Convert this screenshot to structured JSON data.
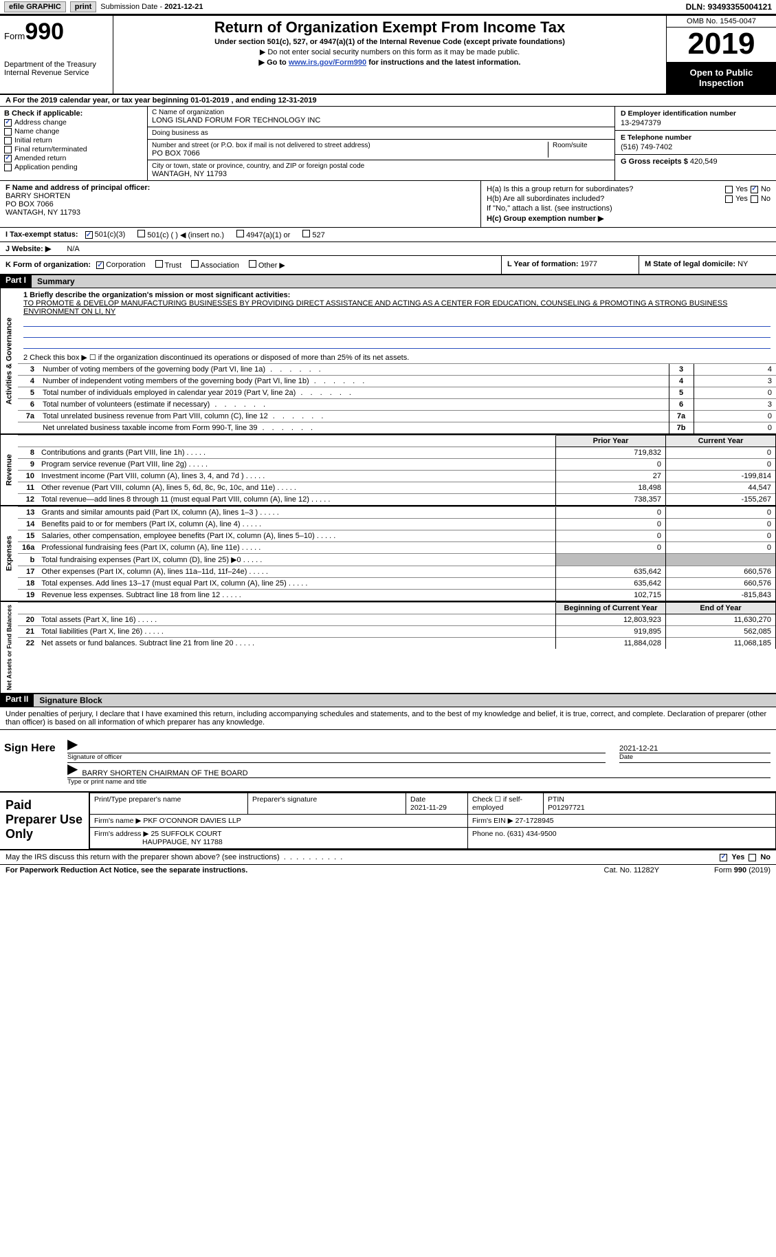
{
  "topbar": {
    "efile": "efile GRAPHIC",
    "print": "print",
    "sub_label": "Submission Date - ",
    "sub_date": "2021-12-21",
    "dln_label": "DLN: ",
    "dln": "93493355004121"
  },
  "header": {
    "form_word": "Form",
    "form_num": "990",
    "dept1": "Department of the Treasury",
    "dept2": "Internal Revenue Service",
    "title": "Return of Organization Exempt From Income Tax",
    "subtitle": "Under section 501(c), 527, or 4947(a)(1) of the Internal Revenue Code (except private foundations)",
    "note1": "▶ Do not enter social security numbers on this form as it may be made public.",
    "note2_pre": "▶ Go to ",
    "note2_link": "www.irs.gov/Form990",
    "note2_post": " for instructions and the latest information.",
    "omb": "OMB No. 1545-0047",
    "year": "2019",
    "inspect1": "Open to Public",
    "inspect2": "Inspection"
  },
  "period": {
    "a": "A",
    "text": "For the 2019 calendar year, or tax year beginning 01-01-2019    , and ending 12-31-2019"
  },
  "boxB": {
    "head": "B Check if applicable:",
    "items": [
      {
        "label": "Address change",
        "checked": true
      },
      {
        "label": "Name change",
        "checked": false
      },
      {
        "label": "Initial return",
        "checked": false
      },
      {
        "label": "Final return/terminated",
        "checked": false
      },
      {
        "label": "Amended return",
        "checked": true
      },
      {
        "label": "Application pending",
        "checked": false
      }
    ]
  },
  "boxC": {
    "name_lbl": "C Name of organization",
    "name": "LONG ISLAND FORUM FOR TECHNOLOGY INC",
    "dba_lbl": "Doing business as",
    "dba": "",
    "addr_lbl": "Number and street (or P.O. box if mail is not delivered to street address)",
    "room_lbl": "Room/suite",
    "addr": "PO BOX 7066",
    "city_lbl": "City or town, state or province, country, and ZIP or foreign postal code",
    "city": "WANTAGH, NY  11793"
  },
  "boxD": {
    "ein_lbl": "D Employer identification number",
    "ein": "13-2947379",
    "tel_lbl": "E Telephone number",
    "tel": "(516) 749-7402",
    "gross_lbl": "G Gross receipts $ ",
    "gross": "420,549"
  },
  "boxF": {
    "lbl": "F Name and address of principal officer:",
    "name": "BARRY SHORTEN",
    "addr1": "PO BOX 7066",
    "addr2": "WANTAGH, NY  11793"
  },
  "boxH": {
    "ha": "H(a)  Is this a group return for subordinates?",
    "hb": "H(b)  Are all subordinates included?",
    "hnote": "If \"No,\" attach a list. (see instructions)",
    "hc": "H(c)  Group exemption number ▶",
    "yes": "Yes",
    "no": "No"
  },
  "rowI": {
    "lbl": "I    Tax-exempt status:",
    "opts": [
      "501(c)(3)",
      "501(c) (  ) ◀ (insert no.)",
      "4947(a)(1) or",
      "527"
    ],
    "checked_idx": 0
  },
  "rowJ": {
    "lbl": "J   Website: ▶",
    "val": "N/A"
  },
  "rowK": {
    "lbl": "K Form of organization:",
    "opts": [
      "Corporation",
      "Trust",
      "Association",
      "Other ▶"
    ],
    "checked_idx": 0,
    "l_lbl": "L Year of formation: ",
    "l_val": "1977",
    "m_lbl": "M State of legal domicile: ",
    "m_val": "NY"
  },
  "part1": {
    "part": "Part I",
    "title": "Summary",
    "tabs": [
      "Activities & Governance",
      "Revenue",
      "Expenses",
      "Net Assets or Fund Balances"
    ],
    "q1_lbl": "1  Briefly describe the organization's mission or most significant activities:",
    "q1_desc": "TO PROMOTE & DEVELOP MANUFACTURING BUSINESSES BY PROVIDING DIRECT ASSISTANCE AND ACTING AS A CENTER FOR EDUCATION, COUNSELING & PROMOTING A STRONG BUSINESS ENVIRONMENT ON LI, NY",
    "q2": "2  Check this box ▶ ☐ if the organization discontinued its operations or disposed of more than 25% of its net assets.",
    "gov_rows": [
      {
        "n": "3",
        "txt": "Number of voting members of the governing body (Part VI, line 1a)",
        "box": "3",
        "val": "4"
      },
      {
        "n": "4",
        "txt": "Number of independent voting members of the governing body (Part VI, line 1b)",
        "box": "4",
        "val": "3"
      },
      {
        "n": "5",
        "txt": "Total number of individuals employed in calendar year 2019 (Part V, line 2a)",
        "box": "5",
        "val": "0"
      },
      {
        "n": "6",
        "txt": "Total number of volunteers (estimate if necessary)",
        "box": "6",
        "val": "3"
      },
      {
        "n": "7a",
        "txt": "Total unrelated business revenue from Part VIII, column (C), line 12",
        "box": "7a",
        "val": "0"
      },
      {
        "n": "",
        "txt": "Net unrelated business taxable income from Form 990-T, line 39",
        "box": "7b",
        "val": "0"
      }
    ],
    "py_hdr": "Prior Year",
    "cy_hdr": "Current Year",
    "rev_rows": [
      {
        "n": "8",
        "txt": "Contributions and grants (Part VIII, line 1h)",
        "py": "719,832",
        "cy": "0"
      },
      {
        "n": "9",
        "txt": "Program service revenue (Part VIII, line 2g)",
        "py": "0",
        "cy": "0"
      },
      {
        "n": "10",
        "txt": "Investment income (Part VIII, column (A), lines 3, 4, and 7d )",
        "py": "27",
        "cy": "-199,814"
      },
      {
        "n": "11",
        "txt": "Other revenue (Part VIII, column (A), lines 5, 6d, 8c, 9c, 10c, and 11e)",
        "py": "18,498",
        "cy": "44,547"
      },
      {
        "n": "12",
        "txt": "Total revenue—add lines 8 through 11 (must equal Part VIII, column (A), line 12)",
        "py": "738,357",
        "cy": "-155,267"
      }
    ],
    "exp_rows": [
      {
        "n": "13",
        "txt": "Grants and similar amounts paid (Part IX, column (A), lines 1–3 )",
        "py": "0",
        "cy": "0"
      },
      {
        "n": "14",
        "txt": "Benefits paid to or for members (Part IX, column (A), line 4)",
        "py": "0",
        "cy": "0"
      },
      {
        "n": "15",
        "txt": "Salaries, other compensation, employee benefits (Part IX, column (A), lines 5–10)",
        "py": "0",
        "cy": "0"
      },
      {
        "n": "16a",
        "txt": "Professional fundraising fees (Part IX, column (A), line 11e)",
        "py": "0",
        "cy": "0"
      },
      {
        "n": "b",
        "txt": "Total fundraising expenses (Part IX, column (D), line 25) ▶0",
        "py": "",
        "cy": "",
        "grey": true
      },
      {
        "n": "17",
        "txt": "Other expenses (Part IX, column (A), lines 11a–11d, 11f–24e)",
        "py": "635,642",
        "cy": "660,576"
      },
      {
        "n": "18",
        "txt": "Total expenses. Add lines 13–17 (must equal Part IX, column (A), line 25)",
        "py": "635,642",
        "cy": "660,576"
      },
      {
        "n": "19",
        "txt": "Revenue less expenses. Subtract line 18 from line 12",
        "py": "102,715",
        "cy": "-815,843"
      }
    ],
    "na_hdr1": "Beginning of Current Year",
    "na_hdr2": "End of Year",
    "na_rows": [
      {
        "n": "20",
        "txt": "Total assets (Part X, line 16)",
        "py": "12,803,923",
        "cy": "11,630,270"
      },
      {
        "n": "21",
        "txt": "Total liabilities (Part X, line 26)",
        "py": "919,895",
        "cy": "562,085"
      },
      {
        "n": "22",
        "txt": "Net assets or fund balances. Subtract line 21 from line 20",
        "py": "11,884,028",
        "cy": "11,068,185"
      }
    ]
  },
  "part2": {
    "part": "Part II",
    "title": "Signature Block",
    "decl": "Under penalties of perjury, I declare that I have examined this return, including accompanying schedules and statements, and to the best of my knowledge and belief, it is true, correct, and complete. Declaration of preparer (other than officer) is based on all information of which preparer has any knowledge."
  },
  "sign": {
    "here": "Sign Here",
    "sig_lbl": "Signature of officer",
    "date_lbl": "Date",
    "date": "2021-12-21",
    "name": "BARRY SHORTEN  CHAIRMAN OF THE BOARD",
    "name_lbl": "Type or print name and title"
  },
  "paid": {
    "title": "Paid Preparer Use Only",
    "h1": "Print/Type preparer's name",
    "h2": "Preparer's signature",
    "h3": "Date",
    "h3v": "2021-11-29",
    "h4": "Check ☐ if self-employed",
    "h5": "PTIN",
    "h5v": "P01297721",
    "firm_lbl": "Firm's name     ▶ ",
    "firm": "PKF O'CONNOR DAVIES LLP",
    "ein_lbl": "Firm's EIN ▶ ",
    "ein": "27-1728945",
    "addr_lbl": "Firm's address ▶ ",
    "addr1": "25 SUFFOLK COURT",
    "addr2": "HAUPPAUGE, NY  11788",
    "phone_lbl": "Phone no. ",
    "phone": "(631) 434-9500"
  },
  "discuss": {
    "txt": "May the IRS discuss this return with the preparer shown above? (see instructions)",
    "yes": "Yes",
    "no": "No"
  },
  "footer": {
    "left": "For Paperwork Reduction Act Notice, see the separate instructions.",
    "mid": "Cat. No. 11282Y",
    "right": "Form 990 (2019)"
  }
}
